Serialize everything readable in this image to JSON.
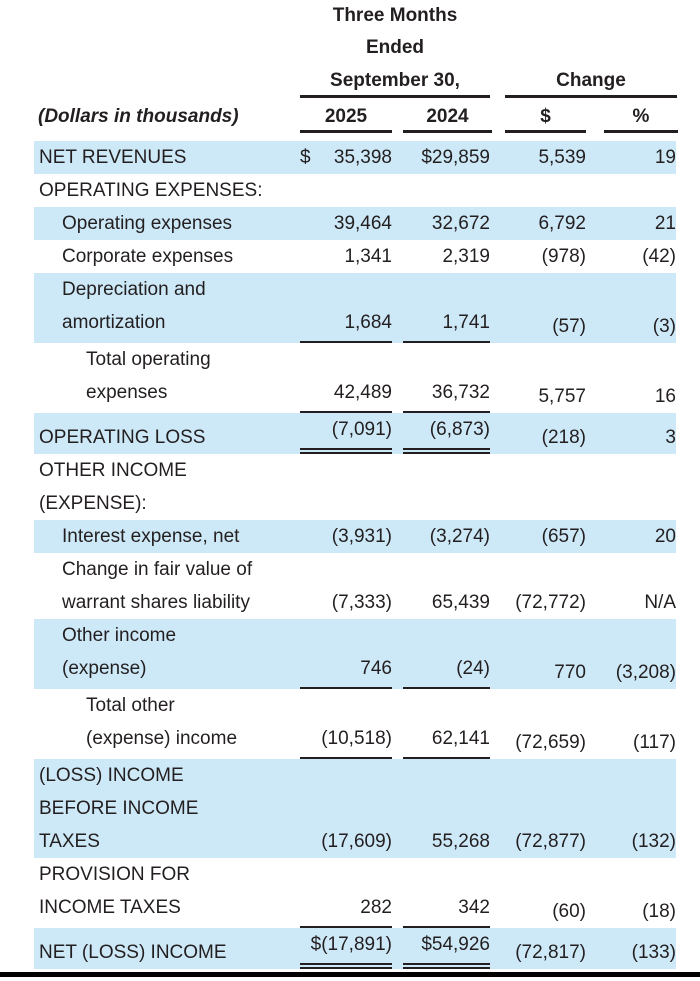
{
  "colors": {
    "highlight": "#cde8f7",
    "text": "#231f20",
    "rule": "#231f20"
  },
  "header": {
    "period_line1": "Three Months",
    "period_line2": "Ended",
    "period_line3": "September 30,",
    "change_label": "Change",
    "row_label_heading": "(Dollars in thousands)",
    "col_year1": "2025",
    "col_year2": "2024",
    "col_change_dollar": "$",
    "col_change_percent": "%"
  },
  "rows": [
    {
      "label": "NET REVENUES",
      "indent": 0,
      "highlight": true,
      "rule": "none",
      "v2025": "$ 35,398",
      "v2024": "$29,859",
      "chg": "5,539",
      "pct": "19"
    },
    {
      "label": "OPERATING EXPENSES:",
      "indent": 0,
      "highlight": false,
      "rule": "none",
      "v2025": "",
      "v2024": "",
      "chg": "",
      "pct": ""
    },
    {
      "label": "Operating expenses",
      "indent": 1,
      "highlight": true,
      "rule": "none",
      "v2025": "39,464",
      "v2024": "32,672",
      "chg": "6,792",
      "pct": "21"
    },
    {
      "label": "Corporate expenses",
      "indent": 1,
      "highlight": false,
      "rule": "none",
      "v2025": "1,341",
      "v2024": "2,319",
      "chg": "(978)",
      "pct": "(42)"
    },
    {
      "label": "Depreciation and\namortization",
      "indent": 1,
      "highlight": true,
      "rule": "single",
      "v2025": "1,684",
      "v2024": "1,741",
      "chg": "(57)",
      "pct": "(3)"
    },
    {
      "label": "Total operating\nexpenses",
      "indent": 2,
      "highlight": false,
      "rule": "single",
      "v2025": "42,489",
      "v2024": "36,732",
      "chg": "5,757",
      "pct": "16"
    },
    {
      "label": "OPERATING LOSS",
      "indent": 0,
      "highlight": true,
      "rule": "double",
      "v2025": "(7,091)",
      "v2024": "(6,873)",
      "chg": "(218)",
      "pct": "3"
    },
    {
      "label": "OTHER INCOME\n(EXPENSE):",
      "indent": 0,
      "highlight": false,
      "rule": "none",
      "v2025": "",
      "v2024": "",
      "chg": "",
      "pct": ""
    },
    {
      "label": "Interest expense, net",
      "indent": 1,
      "highlight": true,
      "rule": "none",
      "v2025": "(3,931)",
      "v2024": "(3,274)",
      "chg": "(657)",
      "pct": "20"
    },
    {
      "label": "Change in fair value of\nwarrant shares liability",
      "indent": 1,
      "highlight": false,
      "rule": "none",
      "v2025": "(7,333)",
      "v2024": "65,439",
      "chg": "(72,772)",
      "pct": "N/A"
    },
    {
      "label": "Other income\n(expense)",
      "indent": 1,
      "highlight": true,
      "rule": "single",
      "v2025": "746",
      "v2024": "(24)",
      "chg": "770",
      "pct": "(3,208)"
    },
    {
      "label": "Total other\n(expense) income",
      "indent": 2,
      "highlight": false,
      "rule": "single",
      "v2025": "(10,518)",
      "v2024": "62,141",
      "chg": "(72,659)",
      "pct": "(117)"
    },
    {
      "label": "(LOSS) INCOME\nBEFORE INCOME\nTAXES",
      "indent": 0,
      "highlight": true,
      "rule": "none",
      "v2025": "(17,609)",
      "v2024": "55,268",
      "chg": "(72,877)",
      "pct": "(132)"
    },
    {
      "label": "PROVISION FOR\nINCOME TAXES",
      "indent": 0,
      "highlight": false,
      "rule": "single",
      "v2025": "282",
      "v2024": "342",
      "chg": "(60)",
      "pct": "(18)"
    },
    {
      "label": "NET (LOSS) INCOME",
      "indent": 0,
      "highlight": true,
      "rule": "double",
      "v2025": "$(17,891)",
      "v2024": "$54,926",
      "chg": "(72,817)",
      "pct": "(133)"
    }
  ]
}
